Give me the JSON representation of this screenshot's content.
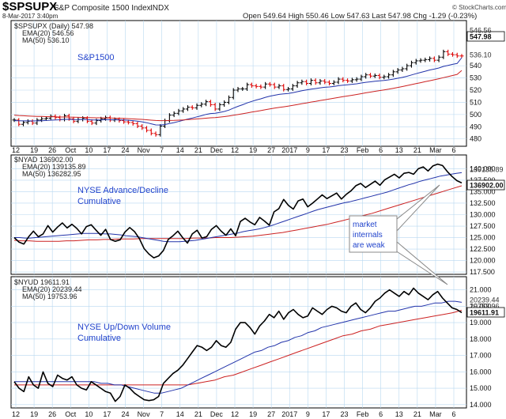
{
  "header": {
    "symbol": "$SPSUPX",
    "name": "S&P Composite 1500 Index",
    "exchange": "INDX",
    "date": "8-Mar-2017 3:40pm",
    "quote": "Open 549.64  High 550.46  Low 547.63  Last 547.98  Chg -1.29 (-0.23%)",
    "watermark": "© StockCharts.com"
  },
  "colors": {
    "price_up": "#000000",
    "price_down": "#dd0000",
    "ema": "#2233aa",
    "ma": "#cc2222",
    "grid": "#b8d8f0",
    "note": "#2244cc"
  },
  "chart_data": [
    {
      "type": "ohlc",
      "legend": [
        "$SPSUPX (Daily) 547.98",
        "EMA(20) 546.56",
        "MA(50) 536.10"
      ],
      "annotation": "S&P1500",
      "ylim": [
        474,
        577
      ],
      "yticks": [
        480,
        490,
        500,
        510,
        520,
        530,
        540
      ],
      "last_label": "547.98",
      "side_labels": [
        "546.56",
        "536.10"
      ],
      "close": [
        495.5,
        492.0,
        493.5,
        494.5,
        493.0,
        495.5,
        496.5,
        497.0,
        498.5,
        497.5,
        496.0,
        499.0,
        496.5,
        494.5,
        496.0,
        497.0,
        494.5,
        493.0,
        495.0,
        496.5,
        497.5,
        495.5,
        496.0,
        495.0,
        494.0,
        493.5,
        492.5,
        490.5,
        489.0,
        487.0,
        484.5,
        483.5,
        490.5,
        495.0,
        499.5,
        501.0,
        503.0,
        504.5,
        506.0,
        505.5,
        507.5,
        508.5,
        510.5,
        508.0,
        504.5,
        508.0,
        510.0,
        514.0,
        520.0,
        521.0,
        521.0,
        524.5,
        523.5,
        523.0,
        522.5,
        525.0,
        524.5,
        522.5,
        523.5,
        520.5,
        521.0,
        523.5,
        526.0,
        527.0,
        525.5,
        528.0,
        526.0,
        527.5,
        526.5,
        525.5,
        526.5,
        529.0,
        528.0,
        527.5,
        528.5,
        529.0,
        531.0,
        532.5,
        531.5,
        532.0,
        530.5,
        531.0,
        532.5,
        535.0,
        536.5,
        537.5,
        540.0,
        542.5,
        544.0,
        544.5,
        545.0,
        546.0,
        544.5,
        547.0,
        551.5,
        549.5,
        549.0,
        548.0,
        547.98
      ],
      "ema20": [
        495.0,
        494.9,
        494.8,
        494.8,
        494.7,
        494.8,
        494.9,
        495.1,
        495.4,
        495.6,
        495.7,
        496.0,
        496.1,
        495.9,
        495.9,
        496.0,
        495.8,
        495.5,
        495.5,
        495.6,
        495.8,
        495.7,
        495.7,
        495.6,
        495.5,
        495.3,
        495.0,
        494.6,
        494.0,
        493.3,
        492.4,
        491.5,
        491.4,
        491.8,
        492.6,
        493.4,
        494.3,
        495.3,
        496.3,
        497.1,
        498.1,
        499.0,
        500.1,
        500.8,
        501.1,
        501.7,
        502.5,
        503.6,
        505.2,
        506.7,
        508.0,
        509.5,
        510.7,
        511.9,
        512.9,
        514.1,
        515.1,
        515.8,
        516.5,
        516.9,
        517.3,
        517.9,
        518.7,
        519.5,
        520.1,
        520.8,
        521.3,
        521.9,
        522.3,
        522.6,
        523.0,
        523.6,
        524.0,
        524.4,
        524.8,
        525.2,
        525.8,
        526.4,
        526.8,
        527.3,
        527.6,
        527.9,
        528.4,
        529.0,
        529.7,
        530.4,
        531.3,
        532.4,
        533.5,
        534.5,
        535.5,
        536.5,
        537.2,
        538.1,
        539.4,
        540.3,
        541.1,
        541.8,
        546.56
      ],
      "ma50": [
        499.5,
        499.2,
        499.0,
        498.8,
        498.6,
        498.5,
        498.4,
        498.3,
        498.2,
        498.1,
        498.0,
        498.0,
        497.9,
        497.8,
        497.7,
        497.6,
        497.5,
        497.4,
        497.3,
        497.3,
        497.2,
        497.1,
        497.0,
        496.9,
        496.8,
        496.6,
        496.4,
        496.2,
        496.0,
        495.7,
        495.4,
        495.1,
        495.0,
        495.0,
        495.1,
        495.2,
        495.4,
        495.6,
        495.8,
        496.1,
        496.4,
        496.7,
        497.0,
        497.3,
        497.5,
        497.9,
        498.3,
        498.8,
        499.4,
        500.0,
        500.6,
        501.3,
        502.0,
        502.6,
        503.2,
        503.9,
        504.6,
        505.2,
        505.8,
        506.3,
        506.9,
        507.5,
        508.2,
        508.9,
        509.5,
        510.2,
        510.8,
        511.5,
        512.1,
        512.7,
        513.3,
        514.0,
        514.6,
        515.2,
        515.8,
        516.4,
        517.1,
        517.8,
        518.4,
        519.0,
        519.6,
        520.2,
        520.8,
        521.5,
        522.2,
        522.9,
        523.7,
        524.5,
        525.3,
        526.1,
        526.9,
        527.7,
        528.5,
        529.3,
        530.2,
        531.1,
        532.0,
        532.9,
        536.1
      ]
    },
    {
      "type": "line",
      "legend": [
        "$NYAD 136902.00",
        "EMA(20) 139135.89",
        "MA(50) 136282.95"
      ],
      "annotation": [
        "NYSE Advance/Decline",
        "Cumulative"
      ],
      "ylim": [
        117000,
        143000
      ],
      "yticks": [
        117500,
        120000,
        122500,
        125000,
        127500,
        130000,
        132500,
        135000,
        137500,
        140000
      ],
      "last_label": "136902.00",
      "side_labels": [
        "139135.89"
      ],
      "series": [
        {
          "name": "$NYAD",
          "values": [
            125000,
            124000,
            123600,
            125200,
            126400,
            125200,
            125800,
            127600,
            126200,
            127300,
            128200,
            127100,
            127900,
            127000,
            125800,
            127400,
            127800,
            126600,
            125500,
            126800,
            124600,
            124200,
            124500,
            126200,
            127200,
            126300,
            124800,
            122600,
            121400,
            120600,
            121000,
            122200,
            124600,
            125400,
            126400,
            125000,
            123800,
            125800,
            126600,
            124900,
            125200,
            126800,
            127600,
            126400,
            125500,
            126900,
            125400,
            128500,
            129200,
            128400,
            127800,
            129400,
            128600,
            127700,
            130600,
            131300,
            133300,
            132000,
            131200,
            133000,
            133400,
            131700,
            132500,
            133400,
            134300,
            133500,
            134100,
            134700,
            133400,
            134400,
            135200,
            136300,
            136800,
            135900,
            136600,
            137300,
            136400,
            137600,
            138200,
            138800,
            138000,
            139000,
            139200,
            138800,
            140000,
            140400,
            139500,
            140600,
            141000,
            140700,
            139400,
            138300,
            137400,
            136902
          ]
        },
        {
          "name": "EMA(20)",
          "values": [
            125000,
            125000,
            124900,
            124900,
            125000,
            125100,
            125200,
            125300,
            125400,
            125500,
            125600,
            125700,
            125800,
            125900,
            125900,
            125900,
            125900,
            125800,
            125800,
            125700,
            125600,
            125400,
            125300,
            125200,
            125000,
            124800,
            124600,
            124400,
            124200,
            124100,
            124100,
            124100,
            124200,
            124300,
            124400,
            124600,
            124800,
            125000,
            125200,
            125400,
            125600,
            125800,
            126000,
            126300,
            126500,
            126700,
            126900,
            127200,
            127500,
            127900,
            128300,
            128700,
            129100,
            129500,
            129900,
            130300,
            130700,
            131100,
            131400,
            131700,
            132000,
            132300,
            132600,
            132800,
            133100,
            133400,
            133700,
            134000,
            134300,
            134600,
            134900,
            135300,
            135700,
            136100,
            136500,
            136800,
            137200,
            137500,
            137800,
            138100,
            138400,
            138600,
            138800,
            139000,
            139135
          ]
        },
        {
          "name": "MA(50)",
          "values": [
            124400,
            124300,
            124300,
            124200,
            124200,
            124200,
            124200,
            124300,
            124300,
            124400,
            124500,
            124500,
            124600,
            124600,
            124700,
            124700,
            124700,
            124800,
            124800,
            124800,
            124800,
            124800,
            124800,
            124800,
            124900,
            124900,
            124900,
            125000,
            125000,
            125000,
            125100,
            125200,
            125300,
            125500,
            125700,
            125900,
            126100,
            126400,
            126700,
            127000,
            127300,
            127600,
            127900,
            128300,
            128700,
            129100,
            129500,
            129900,
            130300,
            130800,
            131300,
            131800,
            132300,
            132800,
            133300,
            133800,
            134300,
            134800,
            135300,
            135800,
            136282
          ]
        }
      ],
      "note": [
        "market",
        "internals",
        "are weak"
      ]
    },
    {
      "type": "line",
      "legend": [
        "$NYUD 19611.91",
        "EMA(20) 20239.44",
        "MA(50) 19753.96"
      ],
      "annotation": [
        "NYSE Up/Down Volume",
        "Cumulative"
      ],
      "ylim": [
        13800,
        21800
      ],
      "yticks": [
        14000,
        15000,
        16000,
        17000,
        18000,
        19000,
        20000,
        21000
      ],
      "last_label": "19611.91",
      "side_labels": [
        "20239.44",
        "19753.96"
      ],
      "series": [
        {
          "name": "$NYUD",
          "values": [
            15400,
            15000,
            14800,
            15700,
            15200,
            15000,
            16000,
            15300,
            15100,
            15800,
            15600,
            15500,
            15700,
            15200,
            15000,
            14900,
            15400,
            15200,
            15000,
            14800,
            14700,
            14200,
            14500,
            15200,
            15000,
            14700,
            14500,
            14300,
            14250,
            14300,
            14500,
            15300,
            15600,
            15900,
            16100,
            16400,
            16800,
            17200,
            17600,
            17500,
            17300,
            17500,
            17900,
            17600,
            17500,
            17800,
            18600,
            19000,
            19000,
            18700,
            18300,
            18800,
            19100,
            19500,
            19300,
            19700,
            19200,
            19600,
            19800,
            19500,
            19300,
            19400,
            19900,
            19700,
            19500,
            19800,
            20000,
            19900,
            19700,
            19600,
            20000,
            20200,
            19800,
            19600,
            19900,
            20300,
            20500,
            20800,
            21000,
            20800,
            20600,
            20900,
            20700,
            21100,
            20800,
            20600,
            20400,
            20700,
            20900,
            20500,
            20200,
            19900,
            19800,
            19611
          ]
        },
        {
          "name": "EMA(20)",
          "values": [
            15400,
            15400,
            15400,
            15400,
            15400,
            15400,
            15400,
            15400,
            15400,
            15400,
            15400,
            15400,
            15400,
            15300,
            15300,
            15200,
            15200,
            15100,
            15000,
            14900,
            14800,
            14700,
            14700,
            14800,
            14900,
            15000,
            15200,
            15400,
            15600,
            15800,
            16000,
            16200,
            16400,
            16600,
            16800,
            17000,
            17200,
            17300,
            17500,
            17600,
            17800,
            17900,
            18100,
            18200,
            18400,
            18500,
            18700,
            18800,
            18900,
            19000,
            19100,
            19200,
            19300,
            19400,
            19500,
            19600,
            19700,
            19700,
            19800,
            19900,
            20000,
            20000,
            20100,
            20200,
            20200,
            20300,
            20300,
            20239
          ]
        },
        {
          "name": "MA(50)",
          "values": [
            15200,
            15200,
            15200,
            15200,
            15200,
            15200,
            15200,
            15200,
            15200,
            15200,
            15200,
            15200,
            15200,
            15200,
            15200,
            15200,
            15200,
            15200,
            15200,
            15200,
            15300,
            15400,
            15500,
            15700,
            15800,
            16000,
            16200,
            16400,
            16600,
            16800,
            17000,
            17200,
            17400,
            17600,
            17800,
            18000,
            18200,
            18300,
            18500,
            18600,
            18800,
            18900,
            19000,
            19100,
            19200,
            19300,
            19400,
            19500,
            19600,
            19753
          ]
        }
      ]
    }
  ],
  "x_axis": {
    "labels": [
      "12",
      "19",
      "26",
      "Oct",
      "10",
      "17",
      "24",
      "Nov",
      "7",
      "14",
      "21",
      "Dec",
      "12",
      "19",
      "27",
      "2017",
      "9",
      "17",
      "23",
      "Feb",
      "6",
      "13",
      "21",
      "Mar",
      "6"
    ]
  }
}
